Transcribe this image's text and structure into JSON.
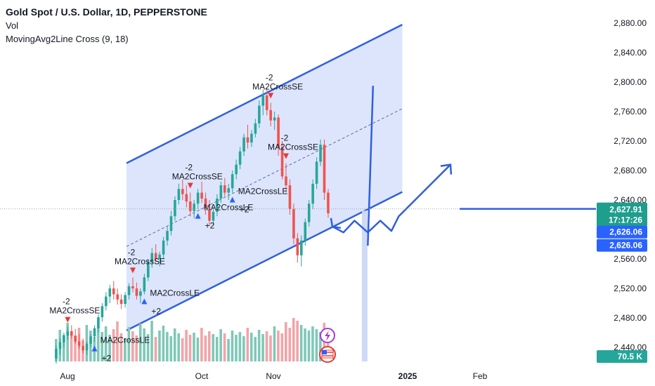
{
  "header": {
    "symbol_title": "Gold Spot / U.S. Dollar, 1D, PEPPERSTONE",
    "indicator_vol": "Vol",
    "indicator_ma": "MovingAvg2Line Cross (9, 18)"
  },
  "chart_data": {
    "type": "candlestick",
    "price_axis": {
      "ticks": [
        "2,880.00",
        "2,840.00",
        "2,800.00",
        "2,760.00",
        "2,720.00",
        "2,680.00",
        "2,640.00",
        "2,600.00",
        "2,560.00",
        "2,520.00",
        "2,480.00",
        "2,440.00"
      ],
      "range": [
        2420,
        2895
      ]
    },
    "time_axis": {
      "ticks": [
        "Aug",
        "Oct",
        "Nov",
        "2025",
        "Feb"
      ]
    },
    "price_tags": {
      "last_price": "2,627.91",
      "countdown": "17:17:26",
      "tag_a": "2,626.06",
      "tag_b": "2,626.06",
      "volume": "70.5 K"
    },
    "horizontal_line_price": 2628,
    "channel": {
      "upper": [
        [
          0,
          2690
        ],
        [
          72,
          2878
        ]
      ],
      "lower": [
        [
          0,
          2463
        ],
        [
          72,
          2651
        ]
      ],
      "midline": [
        [
          0,
          2577
        ],
        [
          72,
          2764
        ]
      ]
    },
    "annotations": [
      {
        "label": "MA2CrossSE",
        "qty": "-2",
        "idx": 3,
        "side": "sell"
      },
      {
        "label": "MA2CrossLE",
        "qty": "+2",
        "idx": 10,
        "side": "buy"
      },
      {
        "label": "MA2CrossSE",
        "qty": "-2",
        "idx": 20,
        "side": "sell"
      },
      {
        "label": "MA2CrossLE",
        "qty": "+2",
        "idx": 23,
        "side": "buy"
      },
      {
        "label": "MA2CrossSE",
        "qty": "-2",
        "idx": 35,
        "side": "sell"
      },
      {
        "label": "MA2CrossLE",
        "qty": "+2",
        "idx": 37,
        "side": "buy"
      },
      {
        "label": "MA2CrossLE",
        "qty": "+2",
        "idx": 46,
        "side": "buy"
      },
      {
        "label": "MA2CrossSE",
        "qty": "-2",
        "idx": 56,
        "side": "sell"
      },
      {
        "label": "MA2CrossSE",
        "qty": "-2",
        "idx": 60,
        "side": "sell"
      }
    ],
    "projection_path": [
      [
        2604,
        0
      ],
      [
        2596,
        1.5
      ],
      [
        2612,
        3
      ],
      [
        2596,
        4.8
      ],
      [
        2612,
        6.5
      ],
      [
        2598,
        8
      ],
      [
        2618,
        9
      ],
      [
        2688,
        16
      ]
    ],
    "candles": [
      [
        2425,
        2442,
        2418,
        2438
      ],
      [
        2438,
        2452,
        2430,
        2447
      ],
      [
        2447,
        2460,
        2440,
        2456
      ],
      [
        2456,
        2468,
        2450,
        2462
      ],
      [
        2462,
        2470,
        2452,
        2456
      ],
      [
        2456,
        2465,
        2445,
        2448
      ],
      [
        2448,
        2458,
        2438,
        2442
      ],
      [
        2442,
        2452,
        2432,
        2436
      ],
      [
        2436,
        2448,
        2430,
        2445
      ],
      [
        2445,
        2458,
        2440,
        2455
      ],
      [
        2455,
        2470,
        2448,
        2466
      ],
      [
        2466,
        2485,
        2460,
        2481
      ],
      [
        2481,
        2500,
        2475,
        2496
      ],
      [
        2496,
        2515,
        2490,
        2509
      ],
      [
        2509,
        2525,
        2500,
        2520
      ],
      [
        2520,
        2530,
        2505,
        2512
      ],
      [
        2512,
        2520,
        2498,
        2505
      ],
      [
        2505,
        2512,
        2492,
        2499
      ],
      [
        2499,
        2515,
        2494,
        2511
      ],
      [
        2511,
        2527,
        2505,
        2523
      ],
      [
        2523,
        2535,
        2515,
        2520
      ],
      [
        2520,
        2528,
        2505,
        2510
      ],
      [
        2510,
        2520,
        2500,
        2516
      ],
      [
        2516,
        2540,
        2512,
        2535
      ],
      [
        2535,
        2560,
        2530,
        2556
      ],
      [
        2556,
        2575,
        2548,
        2568
      ],
      [
        2568,
        2580,
        2555,
        2560
      ],
      [
        2560,
        2570,
        2550,
        2566
      ],
      [
        2566,
        2590,
        2560,
        2585
      ],
      [
        2585,
        2605,
        2578,
        2598
      ],
      [
        2598,
        2625,
        2592,
        2618
      ],
      [
        2618,
        2645,
        2612,
        2640
      ],
      [
        2640,
        2662,
        2634,
        2655
      ],
      [
        2655,
        2668,
        2640,
        2648
      ],
      [
        2648,
        2660,
        2630,
        2638
      ],
      [
        2638,
        2650,
        2618,
        2625
      ],
      [
        2625,
        2640,
        2615,
        2635
      ],
      [
        2635,
        2655,
        2628,
        2650
      ],
      [
        2650,
        2665,
        2636,
        2642
      ],
      [
        2642,
        2650,
        2620,
        2628
      ],
      [
        2628,
        2640,
        2605,
        2612
      ],
      [
        2612,
        2630,
        2605,
        2624
      ],
      [
        2624,
        2648,
        2618,
        2642
      ],
      [
        2642,
        2665,
        2636,
        2660
      ],
      [
        2660,
        2670,
        2645,
        2650
      ],
      [
        2650,
        2662,
        2640,
        2656
      ],
      [
        2656,
        2680,
        2650,
        2675
      ],
      [
        2675,
        2695,
        2668,
        2688
      ],
      [
        2688,
        2712,
        2682,
        2706
      ],
      [
        2706,
        2730,
        2700,
        2725
      ],
      [
        2725,
        2742,
        2710,
        2718
      ],
      [
        2718,
        2735,
        2712,
        2730
      ],
      [
        2730,
        2750,
        2725,
        2744
      ],
      [
        2744,
        2775,
        2738,
        2768
      ],
      [
        2768,
        2790,
        2755,
        2782
      ],
      [
        2782,
        2792,
        2755,
        2762
      ],
      [
        2762,
        2772,
        2740,
        2748
      ],
      [
        2748,
        2760,
        2735,
        2752
      ],
      [
        2752,
        2756,
        2700,
        2712
      ],
      [
        2712,
        2720,
        2668,
        2672
      ],
      [
        2672,
        2690,
        2650,
        2660
      ],
      [
        2660,
        2668,
        2620,
        2628
      ],
      [
        2628,
        2635,
        2580,
        2588
      ],
      [
        2588,
        2595,
        2555,
        2565
      ],
      [
        2565,
        2592,
        2550,
        2585
      ],
      [
        2585,
        2615,
        2578,
        2610
      ],
      [
        2610,
        2640,
        2604,
        2635
      ],
      [
        2635,
        2668,
        2628,
        2662
      ],
      [
        2662,
        2698,
        2655,
        2692
      ],
      [
        2692,
        2722,
        2686,
        2715
      ],
      [
        2715,
        2722,
        2640,
        2650
      ],
      [
        2650,
        2655,
        2616,
        2622
      ]
    ],
    "volumes": [
      0.32,
      0.45,
      0.38,
      0.55,
      0.41,
      0.36,
      0.48,
      0.3,
      0.52,
      0.44,
      0.35,
      0.6,
      0.42,
      0.5,
      0.38,
      0.46,
      0.57,
      0.4,
      0.33,
      0.49,
      0.43,
      0.37,
      0.54,
      0.47,
      0.39,
      0.58,
      0.35,
      0.44,
      0.51,
      0.42,
      0.36,
      0.47,
      0.4,
      0.33,
      0.45,
      0.38,
      0.41,
      0.34,
      0.48,
      0.37,
      0.43,
      0.39,
      0.35,
      0.46,
      0.4,
      0.32,
      0.44,
      0.38,
      0.42,
      0.36,
      0.48,
      0.41,
      0.35,
      0.45,
      0.39,
      0.43,
      0.37,
      0.5,
      0.44,
      0.4,
      0.56,
      0.48,
      0.62,
      0.58,
      0.52,
      0.47,
      0.44,
      0.5,
      0.46,
      0.42,
      0.55,
      0.35
    ]
  }
}
